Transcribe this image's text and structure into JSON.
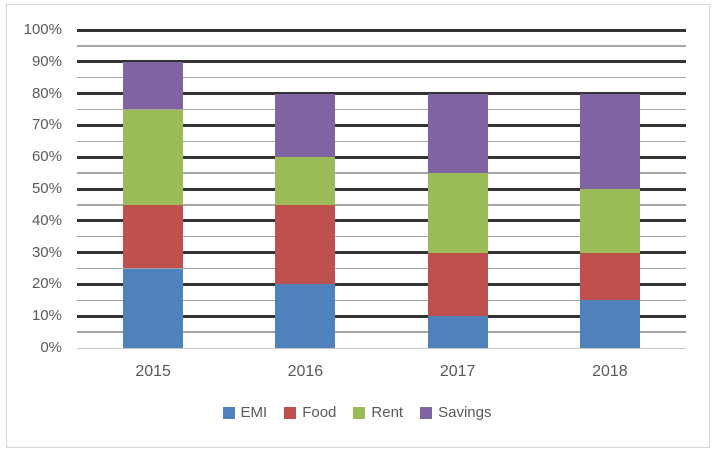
{
  "chart_data": {
    "type": "bar",
    "stacked": true,
    "title": "",
    "xlabel": "",
    "ylabel": "",
    "categories": [
      "2015",
      "2016",
      "2017",
      "2018"
    ],
    "series": [
      {
        "name": "EMI",
        "color": "#4F81BD",
        "values": [
          25,
          20,
          10,
          15
        ]
      },
      {
        "name": "Food",
        "color": "#C0504D",
        "values": [
          20,
          25,
          20,
          15
        ]
      },
      {
        "name": "Rent",
        "color": "#9BBB59",
        "values": [
          30,
          15,
          25,
          20
        ]
      },
      {
        "name": "Savings",
        "color": "#8064A2",
        "values": [
          15,
          20,
          25,
          30
        ]
      }
    ],
    "stack_tops_cumulative": {
      "2015": [
        25,
        45,
        75,
        90
      ],
      "2016": [
        20,
        45,
        60,
        80
      ],
      "2017": [
        10,
        30,
        55,
        80
      ],
      "2018": [
        15,
        30,
        50,
        80
      ]
    },
    "ylim": [
      0,
      100
    ],
    "y_major_step": 10,
    "y_minor_step": 5,
    "y_tick_labels": [
      "0%",
      "10%",
      "20%",
      "30%",
      "40%",
      "50%",
      "60%",
      "70%",
      "80%",
      "90%",
      "100%"
    ],
    "grid": "horizontal; thick dark major lines every 10%, thin gray minor lines every 5%, light gray baseline at 0%",
    "legend_position": "bottom-center"
  },
  "colors": {
    "major_gridline": "#333333",
    "minor_gridline": "#A6A6A6",
    "zero_axis_line": "#C9C9C9",
    "axis_text": "#595959",
    "frame_border": "#D6D6D6",
    "background": "#FFFFFF"
  }
}
